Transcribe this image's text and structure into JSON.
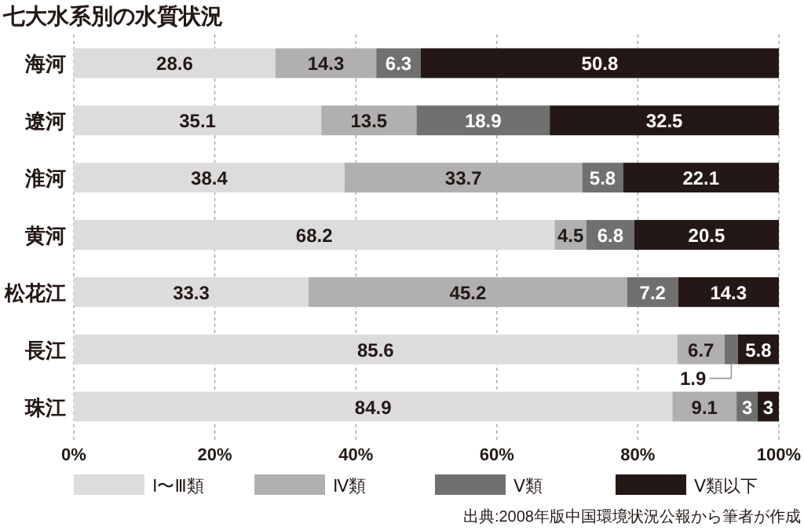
{
  "chart_data": {
    "type": "bar",
    "orientation": "horizontal",
    "stacked": true,
    "title": "七大水系別の水質状況",
    "categories": [
      "海河",
      "遼河",
      "淮河",
      "黄河",
      "松花江",
      "長江",
      "珠江"
    ],
    "series": [
      {
        "name": "Ⅰ〜Ⅲ類",
        "color": "#dcdcdc",
        "values": [
          28.6,
          35.1,
          38.4,
          68.2,
          33.3,
          85.6,
          84.9
        ]
      },
      {
        "name": "Ⅳ類",
        "color": "#b0b0b0",
        "values": [
          14.3,
          13.5,
          33.7,
          4.5,
          45.2,
          6.7,
          9.1
        ]
      },
      {
        "name": "Ⅴ類",
        "color": "#707070",
        "values": [
          6.3,
          18.9,
          5.8,
          6.8,
          7.2,
          1.9,
          3
        ]
      },
      {
        "name": "Ⅴ類以下",
        "color": "#231815",
        "values": [
          50.8,
          32.5,
          22.1,
          20.5,
          14.3,
          5.8,
          3
        ]
      }
    ],
    "xlim": [
      0,
      100
    ],
    "xticks": [
      {
        "value": 0,
        "label": "0%"
      },
      {
        "value": 20,
        "label": "20%"
      },
      {
        "value": 40,
        "label": "40%"
      },
      {
        "value": 60,
        "label": "60%"
      },
      {
        "value": 80,
        "label": "80%"
      },
      {
        "value": 100,
        "label": "100%"
      }
    ],
    "grid": "x",
    "legend": "bottom",
    "data_labels": true,
    "annotations": [
      "出典:2008年版中国環境状況公報から筆者が作成"
    ]
  }
}
